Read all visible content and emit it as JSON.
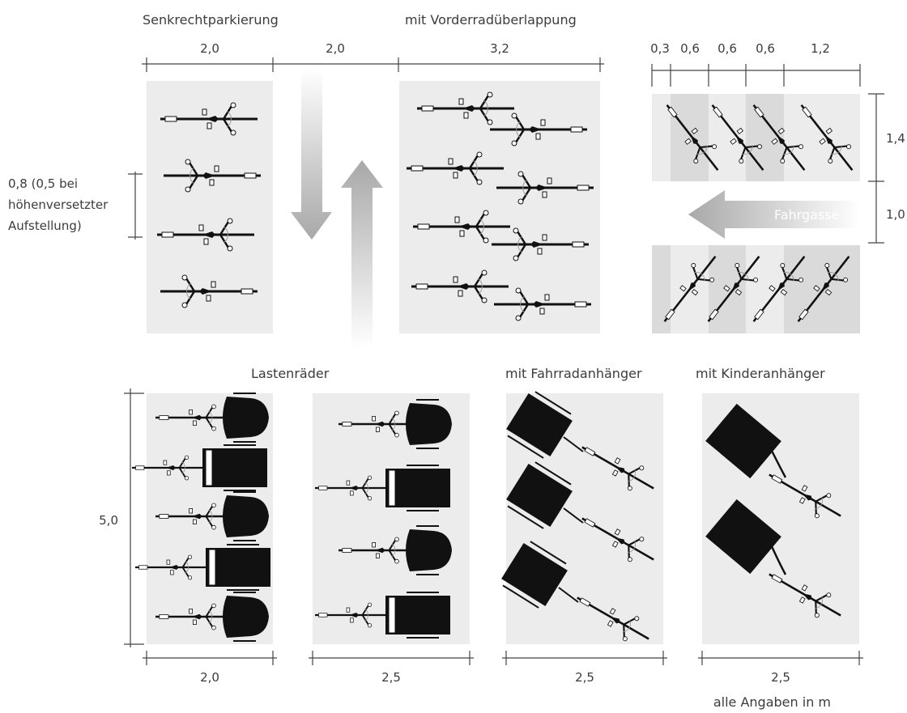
{
  "headings": {
    "perpendicular": "Senkrechtparkierung",
    "overlap": "mit Vorderradüberlappung",
    "cargo": "Lastenräder",
    "bike_trailer": "mit Fahrradanhänger",
    "child_trailer": "mit Kinderanhänger"
  },
  "dimensions_top": {
    "perp_width": "2,0",
    "aisle_width": "2,0",
    "overlap_width": "3,2",
    "angled": [
      "0,3",
      "0,6",
      "0,6",
      "0,6",
      "1,2"
    ],
    "angled_depth": "1,4",
    "angled_aisle": "1,0"
  },
  "spacing_note": [
    "0,8 (0,5 bei",
    "höhenversetzter",
    "Aufstellung)"
  ],
  "aisle_label": "Fahrgasse",
  "dimensions_bottom": {
    "height": "5,0",
    "cargo_1": "2,0",
    "cargo_2": "2,5",
    "bike_trailer": "2,5",
    "child_trailer": "2,5"
  },
  "unit_note": "alle Angaben in m"
}
